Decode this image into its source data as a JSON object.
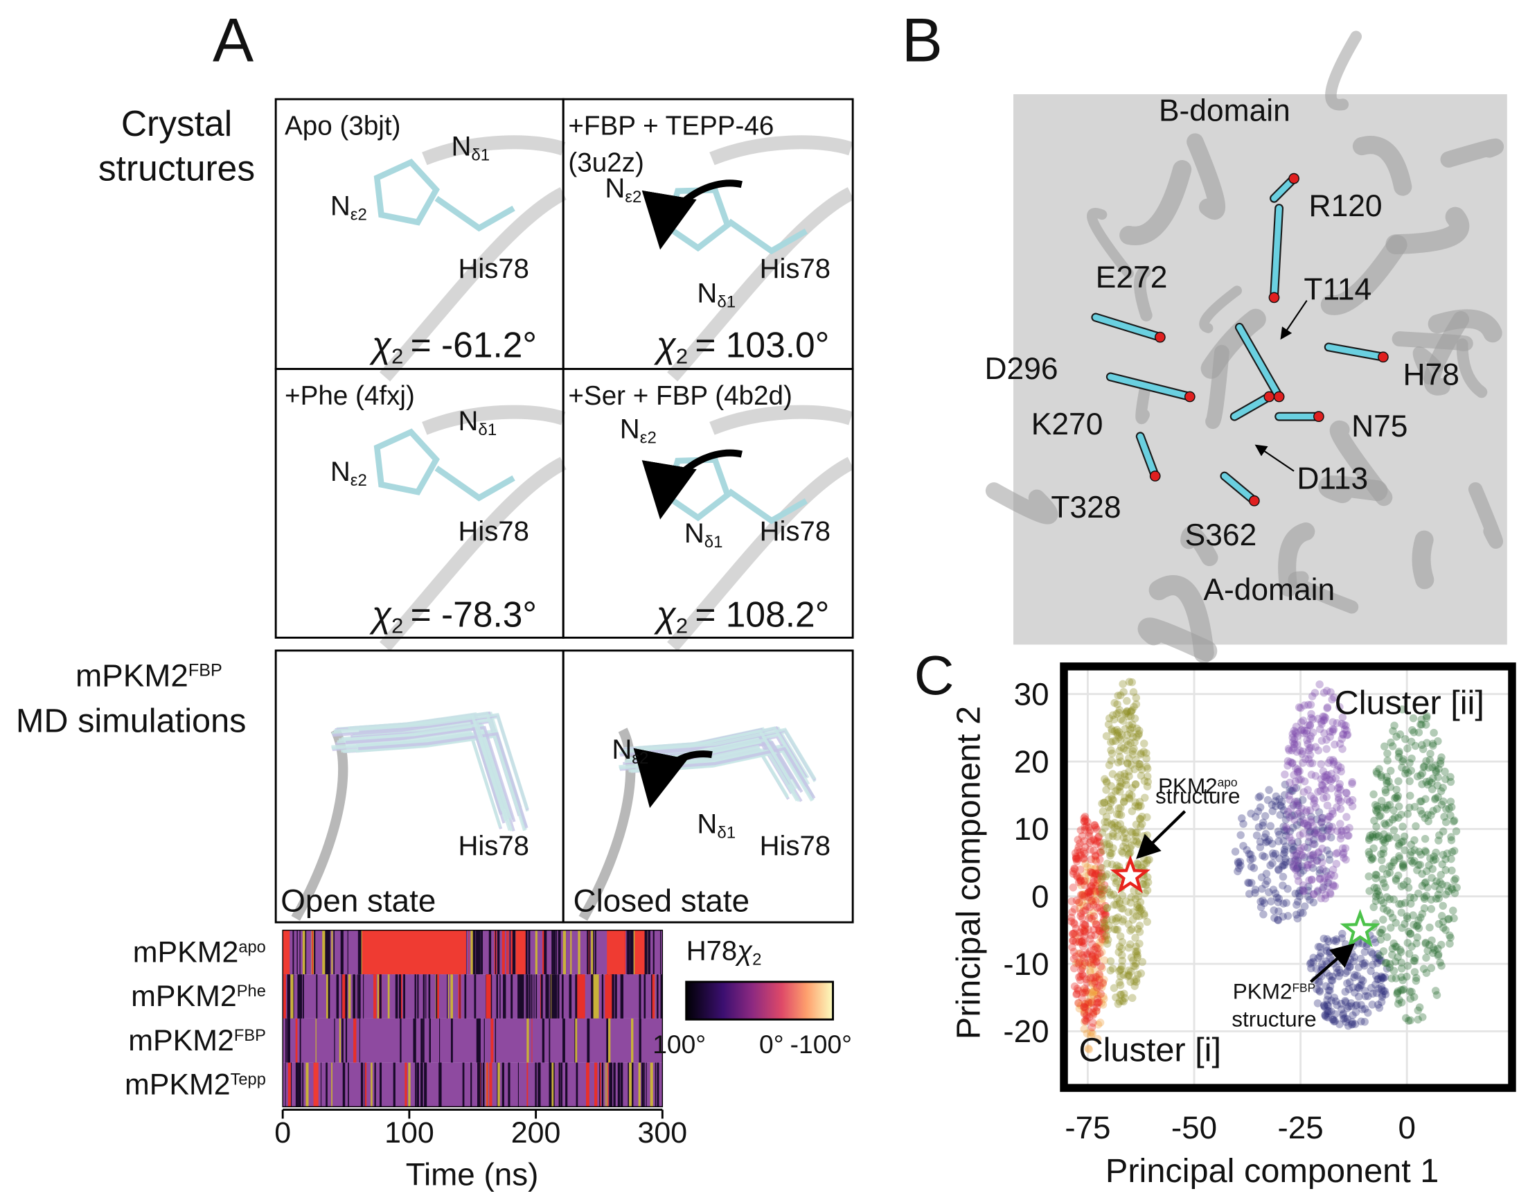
{
  "panel_labels": [
    "A",
    "B",
    "C"
  ],
  "panel_a": {
    "crystal_label": [
      "Crystal",
      "structures"
    ],
    "chi_symbol": "χ",
    "chi_sub": "2",
    "crystal": [
      {
        "title": [
          "Apo (3bjt)"
        ],
        "atoms": [
          {
            "main": "N",
            "sub": "δ1"
          },
          {
            "main": "N",
            "sub": "ε2"
          }
        ],
        "residue": "His78",
        "chi": "= -61.2°"
      },
      {
        "title": [
          "+FBP + TEPP-46",
          "(3u2z)"
        ],
        "atoms": [
          {
            "main": "N",
            "sub": "ε2"
          },
          {
            "main": "N",
            "sub": "δ1"
          }
        ],
        "residue": "His78",
        "chi": "= 103.0°"
      },
      {
        "title": [
          "+Phe (4fxj)"
        ],
        "atoms": [
          {
            "main": "N",
            "sub": "δ1"
          },
          {
            "main": "N",
            "sub": "ε2"
          }
        ],
        "residue": "His78",
        "chi": "= -78.3°"
      },
      {
        "title": [
          "+Ser + FBP (4b2d)"
        ],
        "atoms": [
          {
            "main": "N",
            "sub": "ε2"
          },
          {
            "main": "N",
            "sub": "δ1"
          }
        ],
        "residue": "His78",
        "chi": "= 108.2°"
      }
    ],
    "md_label": {
      "main": "mPKM2",
      "sup": "FBP",
      "line2": "MD simulations"
    },
    "md": [
      {
        "atoms": [],
        "residue": "His78",
        "state": "Open state"
      },
      {
        "atoms": [
          {
            "main": "N",
            "sub": "ε2"
          },
          {
            "main": "N",
            "sub": "δ1"
          }
        ],
        "residue": "His78",
        "state": "Closed state"
      }
    ],
    "heatmap": {
      "rows": [
        {
          "main": "mPKM2",
          "sup": "apo"
        },
        {
          "main": "mPKM2",
          "sup": "Phe"
        },
        {
          "main": "mPKM2",
          "sup": "FBP"
        },
        {
          "main": "mPKM2",
          "sup": "Tepp"
        }
      ],
      "xlabel": "Time (ns)",
      "xlim": [
        0,
        300
      ],
      "xticks": [
        0,
        100,
        200,
        300
      ],
      "colorbar_title": "H78",
      "colorbar_labels": [
        "100°",
        "0°",
        "-100°"
      ]
    }
  },
  "panel_b": {
    "labels": [
      "B-domain",
      "R120",
      "E272",
      "T114",
      "D296",
      "H78",
      "K270",
      "N75",
      "D113",
      "T328",
      "S362",
      "A-domain"
    ]
  },
  "panel_c": {
    "type": "scatter",
    "xlabel": "Principal component 1",
    "ylabel": "Principal component 2",
    "xlim": [
      -80.6,
      24.7
    ],
    "ylim": [
      -28.4,
      34.1
    ],
    "xticks": [
      -75,
      -50,
      -25,
      0
    ],
    "yticks": [
      -20,
      -10,
      0,
      10,
      20,
      30
    ],
    "clusters": [
      "Cluster [ii]",
      "Cluster [i]"
    ],
    "structures": [
      {
        "main": "PKM2",
        "sup": "apo",
        "line2": "structure",
        "x": -65,
        "y": 3
      },
      {
        "main": "PKM2",
        "sup": "FBP",
        "line2": "structure",
        "x": -11,
        "y": -5
      }
    ]
  }
}
